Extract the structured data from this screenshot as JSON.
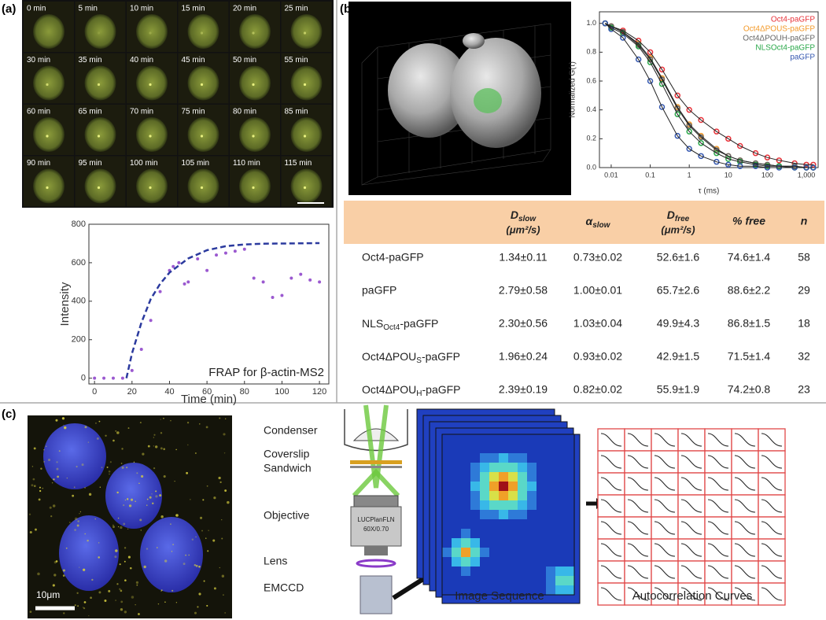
{
  "panel_labels": [
    "(a)",
    "(b)",
    "(c)"
  ],
  "time_labels": [
    "0 min",
    "5 min",
    "10 min",
    "15 min",
    "20 min",
    "25 min",
    "30 min",
    "35 min",
    "40 min",
    "45 min",
    "50 min",
    "55 min",
    "60 min",
    "65 min",
    "70 min",
    "75 min",
    "80 min",
    "85 min",
    "90 min",
    "95 min",
    "100 min",
    "105 min",
    "110 min",
    "115 min"
  ],
  "chart_data": [
    {
      "type": "scatter",
      "title": "FRAP for β-actin-MS2",
      "x_label": "Time (min)",
      "y_label": "Intensity",
      "xlim": [
        -3,
        125
      ],
      "ylim": [
        -30,
        800
      ],
      "xticks": [
        0,
        20,
        40,
        60,
        80,
        100,
        120
      ],
      "yticks": [
        0,
        200,
        400,
        600,
        800
      ],
      "series": [
        {
          "color": "#9b59d0",
          "x": [
            0,
            5,
            10,
            15,
            20,
            25,
            30,
            35,
            40,
            42,
            45,
            48,
            50,
            55,
            60,
            65,
            70,
            75,
            80,
            85,
            90,
            95,
            100,
            105,
            110,
            115,
            120
          ],
          "values": [
            0,
            0,
            0,
            0,
            40,
            150,
            300,
            450,
            560,
            580,
            600,
            490,
            500,
            620,
            560,
            640,
            650,
            660,
            670,
            520,
            500,
            420,
            430,
            520,
            540,
            510,
            500
          ]
        },
        {
          "type": "line",
          "dashed": true,
          "color": "#2b3a9e",
          "x": [
            17,
            20,
            25,
            30,
            35,
            40,
            50,
            60,
            70,
            80,
            90,
            100,
            120
          ],
          "values": [
            0,
            129,
            288,
            411,
            490,
            549,
            622,
            665,
            686,
            695,
            699,
            700,
            702
          ]
        }
      ]
    },
    {
      "type": "line",
      "x_label": "τ (ms)",
      "y_label": "Normalized G(τ)",
      "xscale": "log",
      "xlim": [
        0.005,
        2000
      ],
      "ylim": [
        0,
        1.08
      ],
      "xticks": [
        0.01,
        0.1,
        1,
        10,
        100,
        {
          "value": 1000,
          "label": "1,000"
        }
      ],
      "yticks": [
        {
          "value": 0,
          "label": "0.0"
        },
        0.2,
        0.4,
        0.6,
        0.8,
        {
          "value": 1,
          "label": "1.0"
        }
      ],
      "legend": "upper right",
      "fit_color": "#222222",
      "x": [
        0.007,
        0.01,
        0.02,
        0.05,
        0.1,
        0.2,
        0.5,
        1,
        2,
        5,
        10,
        20,
        50,
        100,
        200,
        500,
        1000,
        1500
      ],
      "series": [
        {
          "name": "Oct4-paGFP",
          "color": "#e8333a",
          "values": [
            1,
            0.98,
            0.95,
            0.88,
            0.8,
            0.68,
            0.5,
            0.4,
            0.33,
            0.25,
            0.2,
            0.15,
            0.1,
            0.07,
            0.05,
            0.03,
            0.02,
            0.02
          ]
        },
        {
          "name": "Oct4ΔPOUS-paGFP",
          "color": "#f39a2a",
          "values": [
            1,
            0.98,
            0.94,
            0.86,
            0.76,
            0.62,
            0.42,
            0.3,
            0.22,
            0.13,
            0.08,
            0.05,
            0.03,
            0.02,
            0.01,
            0.01,
            0,
            0
          ]
        },
        {
          "name": "Oct4ΔPOUH-paGFP",
          "color": "#666666",
          "values": [
            1,
            0.98,
            0.94,
            0.85,
            0.75,
            0.61,
            0.41,
            0.29,
            0.21,
            0.12,
            0.08,
            0.05,
            0.03,
            0.02,
            0.01,
            0.01,
            0,
            0
          ]
        },
        {
          "name": "NLSOct4-paGFP",
          "color": "#2aa84a",
          "values": [
            1,
            0.97,
            0.93,
            0.84,
            0.73,
            0.58,
            0.37,
            0.25,
            0.17,
            0.1,
            0.06,
            0.04,
            0.02,
            0.01,
            0.01,
            0,
            0,
            0
          ]
        },
        {
          "name": "paGFP",
          "color": "#3558b0",
          "values": [
            1,
            0.96,
            0.9,
            0.75,
            0.6,
            0.42,
            0.22,
            0.13,
            0.08,
            0.04,
            0.02,
            0.01,
            0.01,
            0,
            0,
            0,
            0,
            0
          ]
        }
      ]
    }
  ],
  "table": {
    "header": [
      {
        "symbol": "D",
        "sub": "slow",
        "unit": "(μm²/s)"
      },
      {
        "symbol": "α",
        "sub": "slow"
      },
      {
        "symbol": "D",
        "sub": "free",
        "unit": "(μm²/s)"
      },
      "% free",
      "n"
    ],
    "rows": [
      [
        "Oct4-paGFP",
        "1.34±0.11",
        "0.73±0.02",
        "52.6±1.6",
        "74.6±1.4",
        "58"
      ],
      [
        "paGFP",
        "2.79±0.58",
        "1.00±0.01",
        "65.7±2.6",
        "88.6±2.2",
        "29"
      ],
      [
        {
          "main": "NLS",
          "sub": "Oct4",
          "tail": "-paGFP"
        },
        "2.30±0.56",
        "1.03±0.04",
        "49.9±4.3",
        "86.8±1.5",
        "18"
      ],
      [
        {
          "main": "Oct4ΔPOU",
          "sub": "S",
          "tail": "-paGFP"
        },
        "1.96±0.24",
        "0.93±0.02",
        "42.9±1.5",
        "71.5±1.4",
        "32"
      ],
      [
        {
          "main": "Oct4ΔPOU",
          "sub": "H",
          "tail": "-paGFP"
        },
        "2.39±0.19",
        "0.82±0.02",
        "55.9±1.9",
        "74.2±0.8",
        "23"
      ]
    ]
  },
  "schematic": {
    "condenser": "Condenser",
    "coverslip": [
      "Coverslip",
      "Sandwich"
    ],
    "objective": "Objective",
    "objective_text": [
      "LUCPlanFLN",
      "60X/0.70"
    ],
    "lens": "Lens",
    "emccd": "EMCCD",
    "image_sequence": "Image Sequence",
    "autocorrelation": "Autocorrelation Curves"
  },
  "scale_bar": "10μm"
}
